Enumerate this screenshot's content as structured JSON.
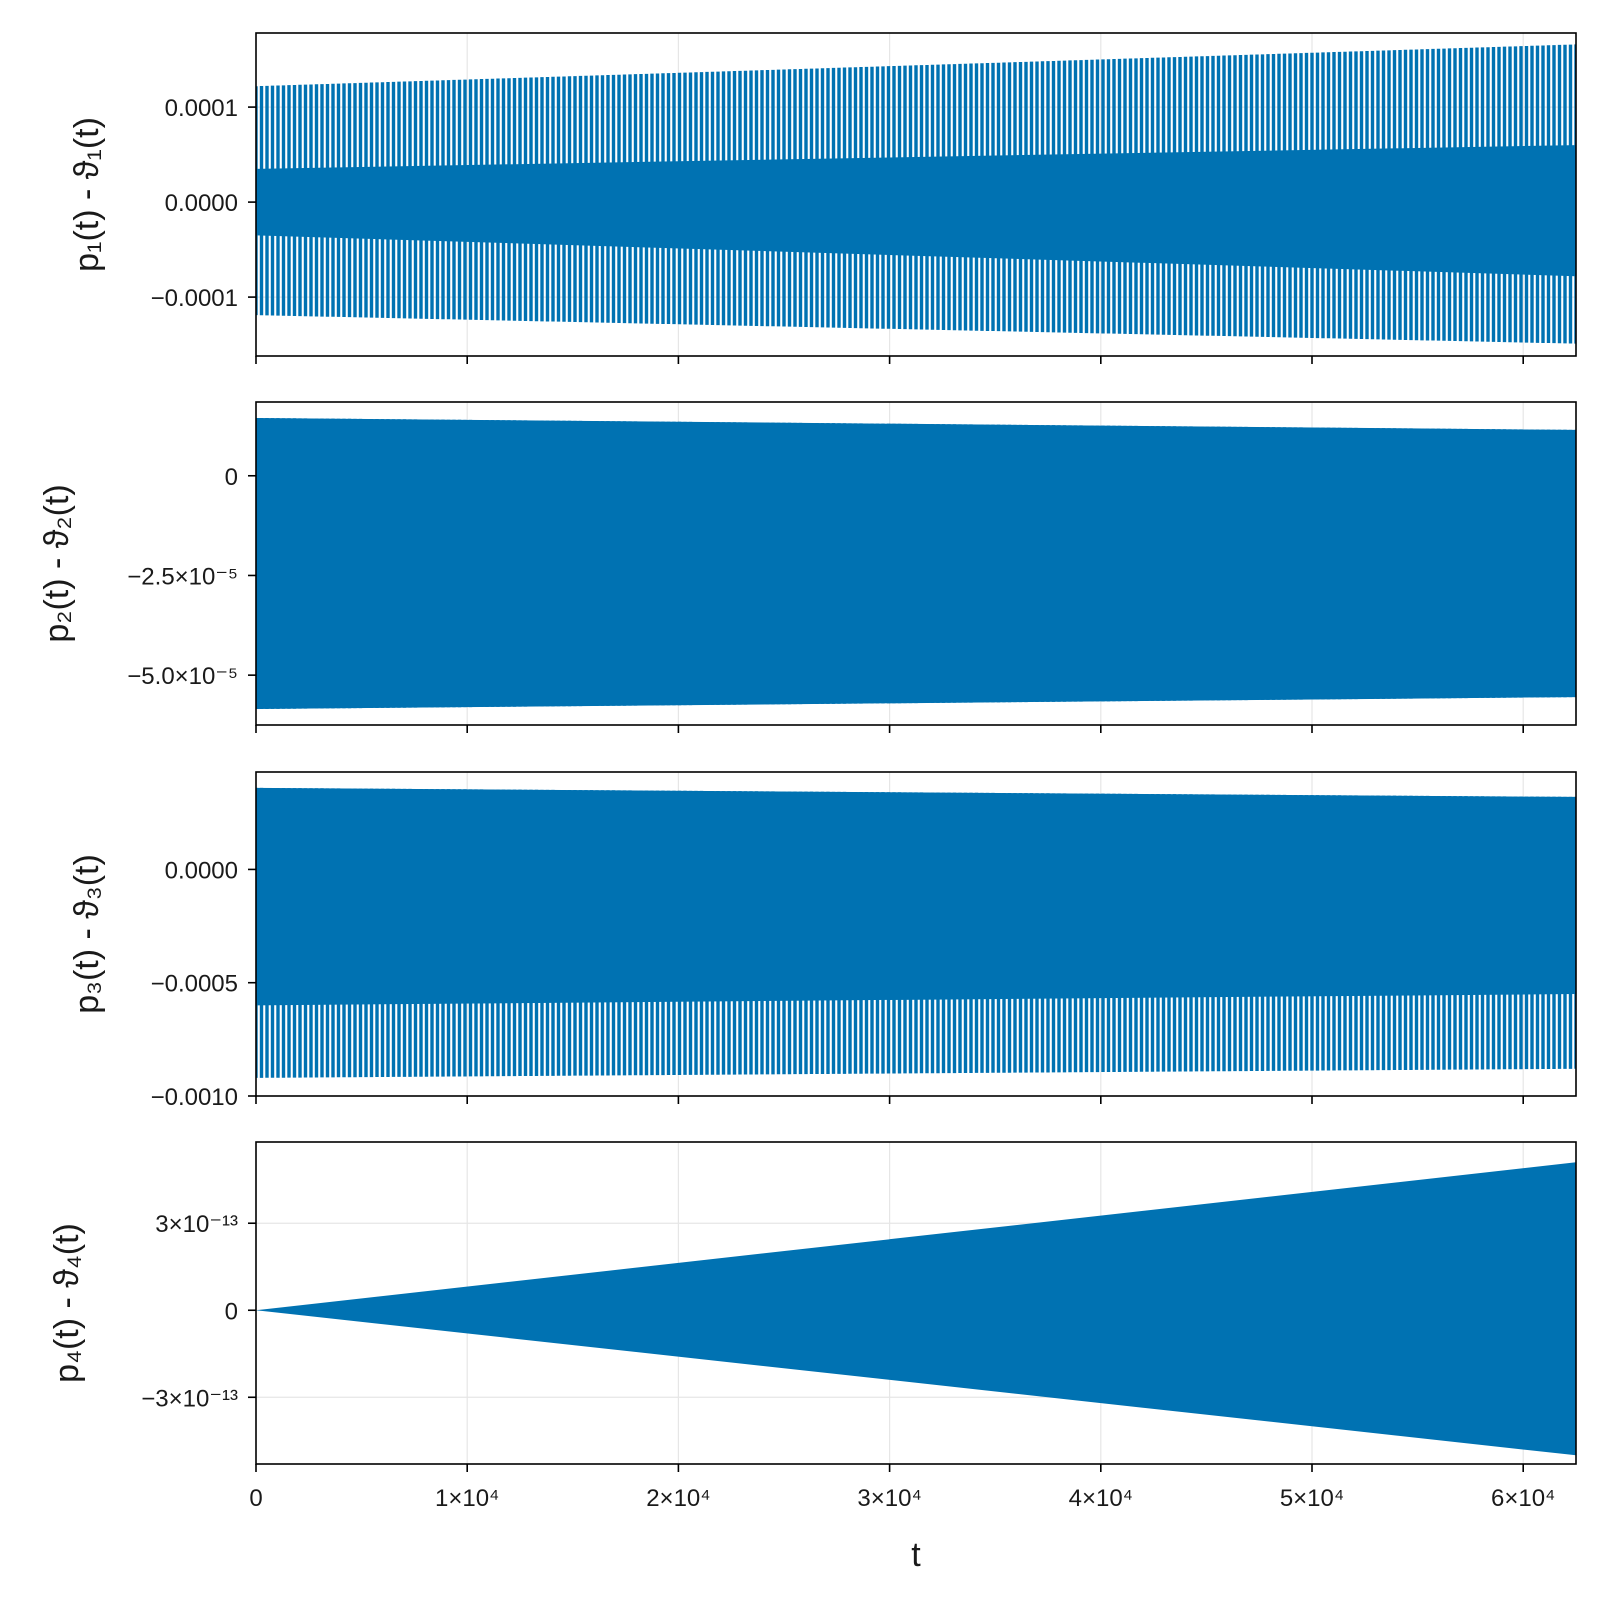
{
  "chart_data": [
    {
      "type": "line",
      "ylabel": "p₁(t) - ϑ₁(t)",
      "xlim": [
        0,
        62500
      ],
      "ylim": [
        -0.000162,
        0.000178
      ],
      "yticks": [
        {
          "value": 0.0001,
          "label": "0.0001"
        },
        {
          "value": 0.0,
          "label": "0.0000"
        },
        {
          "value": -0.0001,
          "label": "−0.0001"
        }
      ],
      "xticks": [
        {
          "value": 0,
          "label": ""
        },
        {
          "value": 10000,
          "label": ""
        },
        {
          "value": 20000,
          "label": ""
        },
        {
          "value": 30000,
          "label": ""
        },
        {
          "value": 40000,
          "label": ""
        },
        {
          "value": 50000,
          "label": ""
        },
        {
          "value": 60000,
          "label": ""
        }
      ],
      "envelope": {
        "t": [
          0,
          62500
        ],
        "outer_upper": [
          0.000122,
          0.000166
        ],
        "outer_lower": [
          -0.000119,
          -0.000149
        ],
        "inner_upper": [
          3.5e-05,
          6e-05
        ],
        "inner_lower": [
          -3.5e-05,
          -7.8e-05
        ]
      },
      "period_count": 240,
      "line_color": "#0072b2"
    },
    {
      "type": "line",
      "ylabel": "p₂(t) - ϑ₂(t)",
      "xlim": [
        0,
        62500
      ],
      "ylim": [
        -6.25e-05,
        1.85e-05
      ],
      "yticks": [
        {
          "value": 0.0,
          "label": "0"
        },
        {
          "value": -2.5e-05,
          "label": "−2.5×10⁻⁵"
        },
        {
          "value": -5e-05,
          "label": "−5.0×10⁻⁵"
        }
      ],
      "xticks": [
        {
          "value": 0,
          "label": ""
        },
        {
          "value": 10000,
          "label": ""
        },
        {
          "value": 20000,
          "label": ""
        },
        {
          "value": 30000,
          "label": ""
        },
        {
          "value": 40000,
          "label": ""
        },
        {
          "value": 50000,
          "label": ""
        },
        {
          "value": 60000,
          "label": ""
        }
      ],
      "envelope": {
        "t": [
          0,
          62500
        ],
        "outer_upper": [
          1.45e-05,
          1.15e-05
        ],
        "outer_lower": [
          -5.85e-05,
          -5.55e-05
        ]
      },
      "period_count": 240,
      "line_color": "#0072b2"
    },
    {
      "type": "line",
      "ylabel": "p₃(t) - ϑ₃(t)",
      "xlim": [
        0,
        62500
      ],
      "ylim": [
        -0.001,
        0.00043
      ],
      "yticks": [
        {
          "value": 0.0,
          "label": "0.0000"
        },
        {
          "value": -0.0005,
          "label": "−0.0005"
        },
        {
          "value": -0.001,
          "label": "−0.0010"
        }
      ],
      "xticks": [
        {
          "value": 0,
          "label": ""
        },
        {
          "value": 10000,
          "label": ""
        },
        {
          "value": 20000,
          "label": ""
        },
        {
          "value": 30000,
          "label": ""
        },
        {
          "value": 40000,
          "label": ""
        },
        {
          "value": 50000,
          "label": ""
        },
        {
          "value": 60000,
          "label": ""
        }
      ],
      "envelope": {
        "t": [
          0,
          62500
        ],
        "outer_upper": [
          0.00036,
          0.00032
        ],
        "outer_lower": [
          -0.00092,
          -0.00088
        ],
        "inner_lower": [
          -0.0006,
          -0.00055
        ]
      },
      "period_count": 240,
      "line_color": "#0072b2"
    },
    {
      "type": "line",
      "ylabel": "p₄(t) - ϑ₄(t)",
      "xlabel": "t",
      "xlim": [
        0,
        62500
      ],
      "ylim": [
        -5.3e-13,
        5.8e-13
      ],
      "yticks": [
        {
          "value": 3e-13,
          "label": "3×10⁻¹³"
        },
        {
          "value": 0,
          "label": "0"
        },
        {
          "value": -3e-13,
          "label": "−3×10⁻¹³"
        }
      ],
      "xticks": [
        {
          "value": 0,
          "label": "0"
        },
        {
          "value": 10000,
          "label": "1×10⁴"
        },
        {
          "value": 20000,
          "label": "2×10⁴"
        },
        {
          "value": 30000,
          "label": "3×10⁴"
        },
        {
          "value": 40000,
          "label": "4×10⁴"
        },
        {
          "value": 50000,
          "label": "5×10⁴"
        },
        {
          "value": 60000,
          "label": "6×10⁴"
        }
      ],
      "envelope": {
        "t": [
          0,
          62500
        ],
        "outer_upper": [
          0,
          5.1e-13
        ],
        "outer_lower": [
          0,
          -5e-13
        ]
      },
      "period_count": 0,
      "line_color": "#0072b2"
    }
  ]
}
